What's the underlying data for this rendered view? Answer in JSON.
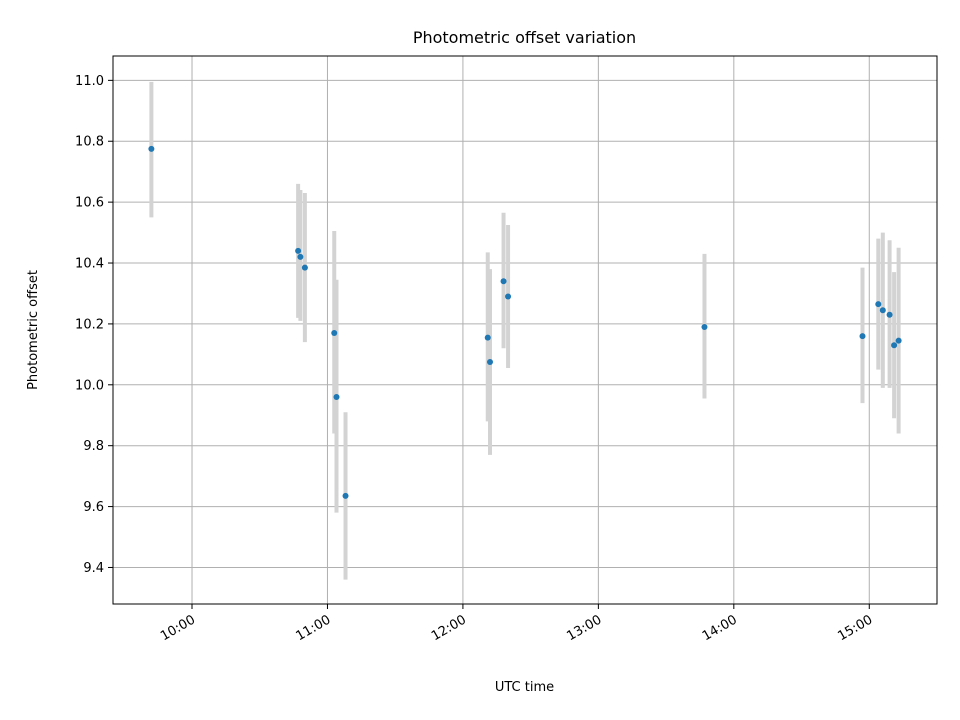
{
  "chart_data": {
    "type": "scatter",
    "title": "Photometric offset variation",
    "xlabel": "UTC time",
    "ylabel": "Photometric offset",
    "x_ticks": [
      "10:00",
      "11:00",
      "12:00",
      "13:00",
      "14:00",
      "15:00"
    ],
    "y_ticks": [
      "9.4",
      "9.6",
      "9.8",
      "10.0",
      "10.2",
      "10.4",
      "10.6",
      "10.8",
      "11.0"
    ],
    "xlim": [
      "09:25",
      "15:30"
    ],
    "ylim": [
      9.28,
      11.08
    ],
    "grid": true,
    "colors": {
      "marker": "#1f77b4",
      "errorbar": "#d3d3d3"
    },
    "points": [
      {
        "t": "09:42",
        "y": 10.775,
        "lo": 10.55,
        "hi": 10.995
      },
      {
        "t": "10:47",
        "y": 10.44,
        "lo": 10.22,
        "hi": 10.66
      },
      {
        "t": "10:48",
        "y": 10.42,
        "lo": 10.21,
        "hi": 10.64
      },
      {
        "t": "10:50",
        "y": 10.385,
        "lo": 10.14,
        "hi": 10.63
      },
      {
        "t": "11:03",
        "y": 10.17,
        "lo": 9.84,
        "hi": 10.505
      },
      {
        "t": "11:04",
        "y": 9.96,
        "lo": 9.58,
        "hi": 10.345
      },
      {
        "t": "11:08",
        "y": 9.635,
        "lo": 9.36,
        "hi": 9.91
      },
      {
        "t": "12:11",
        "y": 10.155,
        "lo": 9.88,
        "hi": 10.435
      },
      {
        "t": "12:12",
        "y": 10.075,
        "lo": 9.77,
        "hi": 10.38
      },
      {
        "t": "12:18",
        "y": 10.34,
        "lo": 10.12,
        "hi": 10.565
      },
      {
        "t": "12:20",
        "y": 10.29,
        "lo": 10.055,
        "hi": 10.525
      },
      {
        "t": "13:47",
        "y": 10.19,
        "lo": 9.955,
        "hi": 10.43
      },
      {
        "t": "14:57",
        "y": 10.16,
        "lo": 9.94,
        "hi": 10.385
      },
      {
        "t": "15:04",
        "y": 10.265,
        "lo": 10.05,
        "hi": 10.48
      },
      {
        "t": "15:06",
        "y": 10.245,
        "lo": 9.99,
        "hi": 10.5
      },
      {
        "t": "15:09",
        "y": 10.23,
        "lo": 9.99,
        "hi": 10.475
      },
      {
        "t": "15:11",
        "y": 10.13,
        "lo": 9.89,
        "hi": 10.37
      },
      {
        "t": "15:13",
        "y": 10.145,
        "lo": 9.84,
        "hi": 10.45
      }
    ]
  }
}
